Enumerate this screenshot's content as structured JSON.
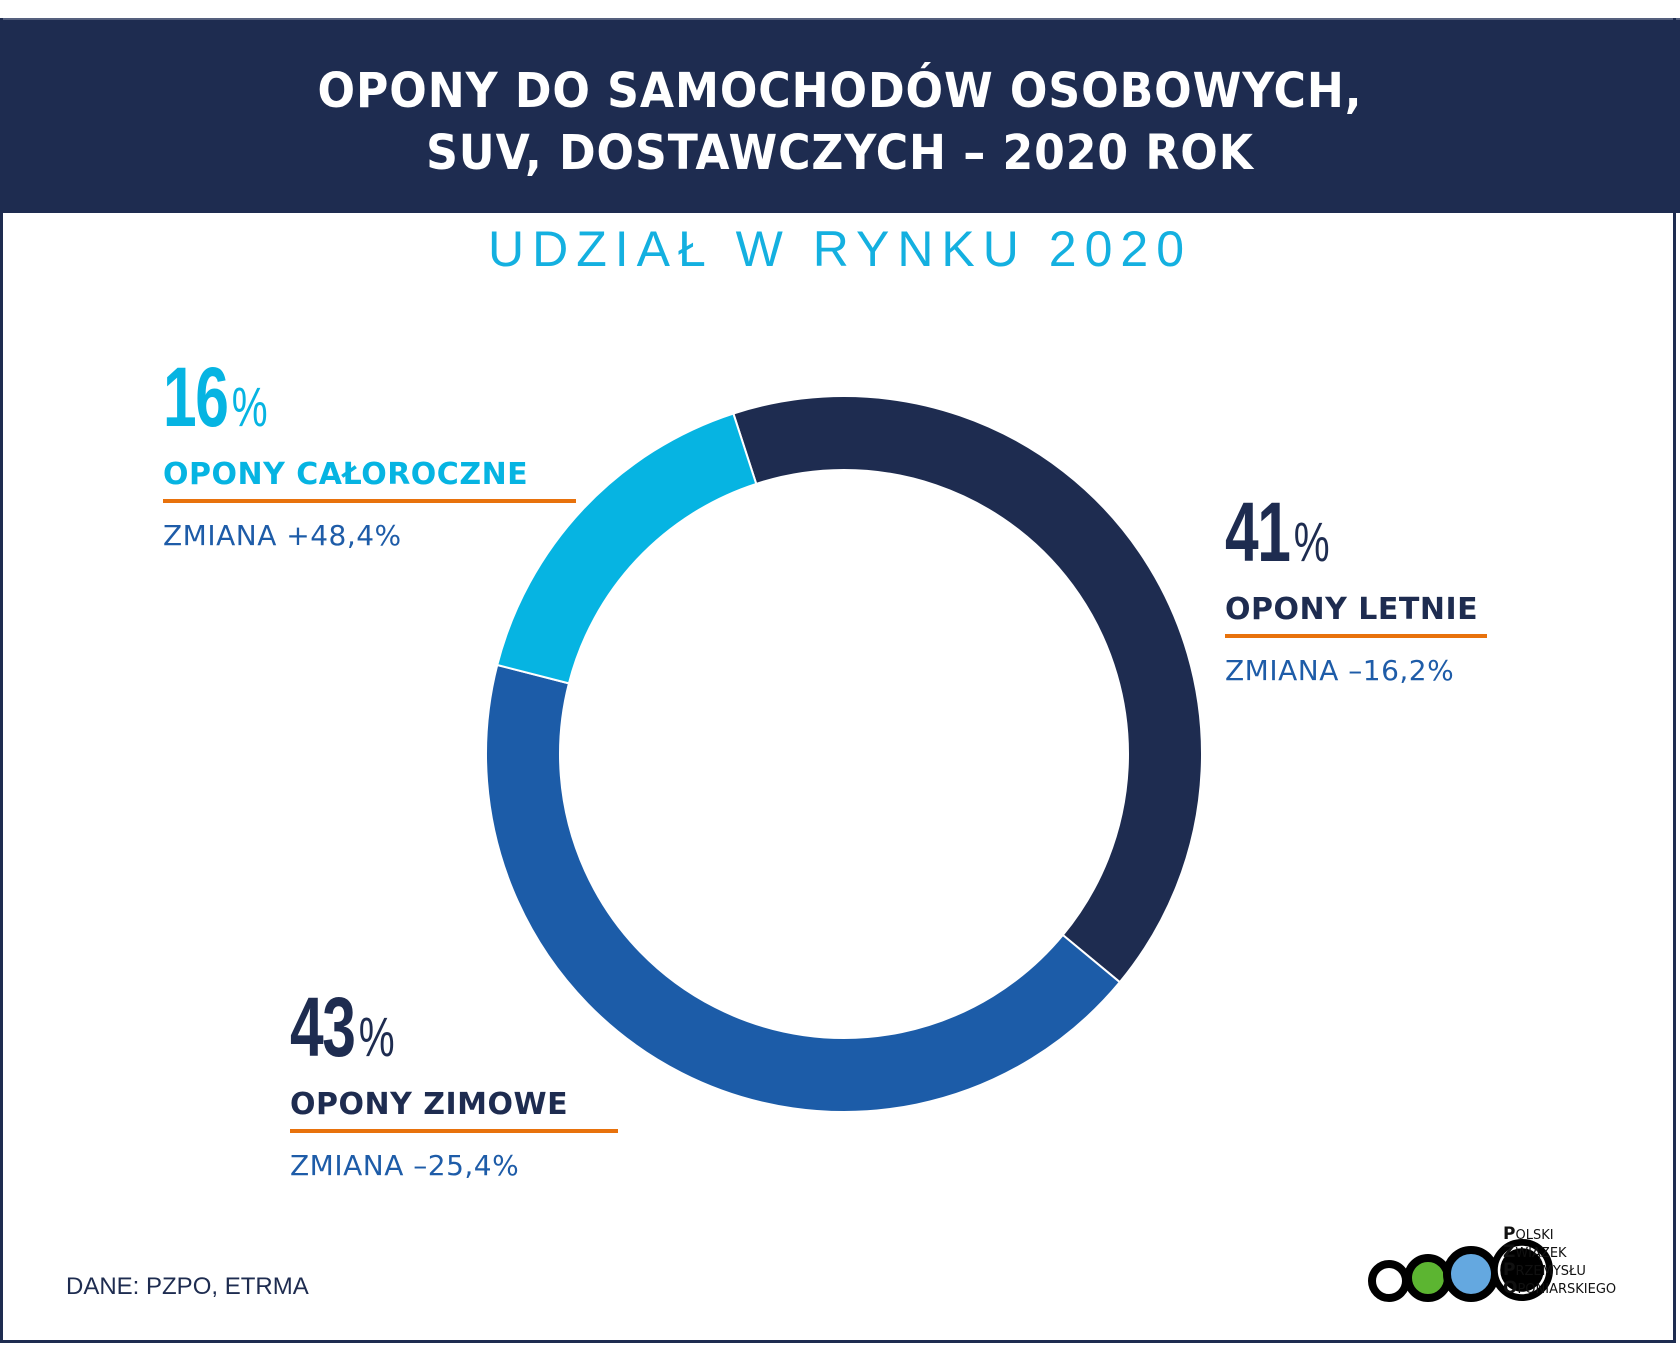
{
  "header": {
    "title_line1": "OPONY DO SAMOCHODÓW OSOBOWYCH,",
    "title_line2": "SUV, DOSTAWCZYCH – 2020 ROK"
  },
  "subtitle": "UDZIAŁ W RYNKU 2020",
  "segments": [
    {
      "pct": "41",
      "sym": "%",
      "label": "OPONY LETNIE",
      "change": "ZMIANA –16,2%",
      "color": "#1e2c50"
    },
    {
      "pct": "43",
      "sym": "%",
      "label": "OPONY ZIMOWE",
      "change": "ZMIANA –25,4%",
      "color": "#1c5ca8"
    },
    {
      "pct": "16",
      "sym": "%",
      "label": "OPONY CAŁOROCZNE",
      "change": "ZMIANA +48,4%",
      "color": "#06b4e2"
    }
  ],
  "source": "DANE: PZPO, ETRMA",
  "logo": {
    "lines": [
      {
        "initial": "P",
        "rest": "OLSKI"
      },
      {
        "initial": "Z",
        "rest": "WIĄZEK"
      },
      {
        "initial": "P",
        "rest": "RZEMYSŁU"
      },
      {
        "initial": "O",
        "rest": "PONIARSKIEGO"
      }
    ],
    "circle_colors": [
      "#ffffff",
      "#5cb531",
      "#64a8e0",
      "#000000"
    ]
  },
  "chart_data": {
    "type": "pie",
    "subtype": "donut",
    "title": "OPONY DO SAMOCHODÓW OSOBOWYCH, SUV, DOSTAWCZYCH – 2020 ROK",
    "subtitle": "UDZIAŁ W RYNKU 2020",
    "categories": [
      "OPONY LETNIE",
      "OPONY ZIMOWE",
      "OPONY CAŁOROCZNE"
    ],
    "values": [
      41,
      43,
      16
    ],
    "unit": "%",
    "changes": [
      "–16,2%",
      "–25,4%",
      "+48,4%"
    ],
    "colors": [
      "#1e2c50",
      "#1c5ca8",
      "#06b4e2"
    ],
    "start_angle_deg": -18,
    "direction": "clockwise",
    "source": "DANE: PZPO, ETRMA"
  }
}
